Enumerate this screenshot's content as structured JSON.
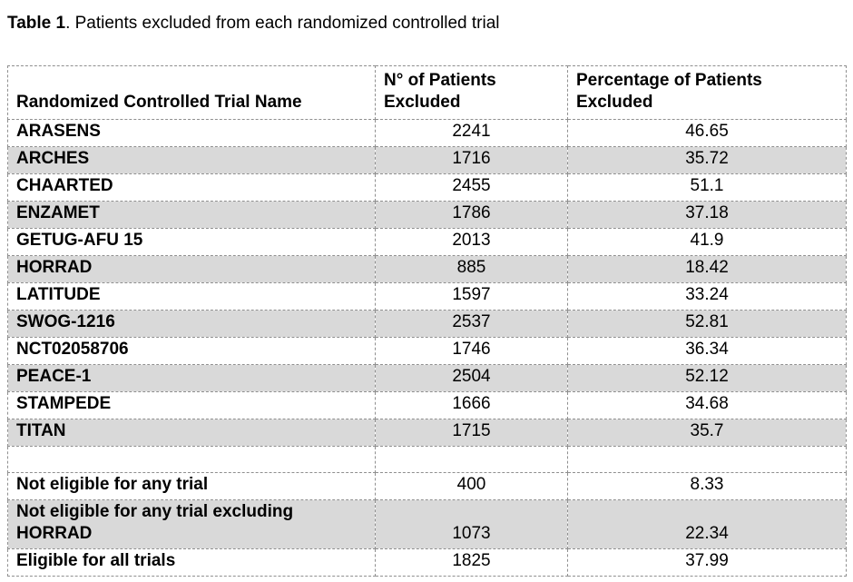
{
  "title": {
    "bold": "Table 1",
    "rest": ". Patients excluded from each randomized controlled trial"
  },
  "table": {
    "headers": {
      "trial_name": "Randomized Controlled Trial Name",
      "patients_excluded": "N° of Patients Excluded",
      "percentage_excluded": "Percentage of Patients Excluded"
    },
    "colors": {
      "row_shade": "#d9d9d9",
      "border": "#8f8f8f",
      "text": "#000000"
    },
    "rows": [
      {
        "name": "ARASENS",
        "patients_excluded": "2241",
        "percentage_excluded": "46.65",
        "shaded": false
      },
      {
        "name": "ARCHES",
        "patients_excluded": "1716",
        "percentage_excluded": "35.72",
        "shaded": true
      },
      {
        "name": "CHAARTED",
        "patients_excluded": "2455",
        "percentage_excluded": "51.1",
        "shaded": false
      },
      {
        "name": "ENZAMET",
        "patients_excluded": "1786",
        "percentage_excluded": "37.18",
        "shaded": true
      },
      {
        "name": "GETUG-AFU 15",
        "patients_excluded": "2013",
        "percentage_excluded": "41.9",
        "shaded": false
      },
      {
        "name": "HORRAD",
        "patients_excluded": "885",
        "percentage_excluded": "18.42",
        "shaded": true
      },
      {
        "name": "LATITUDE",
        "patients_excluded": "1597",
        "percentage_excluded": "33.24",
        "shaded": false
      },
      {
        "name": "SWOG-1216",
        "patients_excluded": "2537",
        "percentage_excluded": "52.81",
        "shaded": true
      },
      {
        "name": "NCT02058706",
        "patients_excluded": "1746",
        "percentage_excluded": "36.34",
        "shaded": false
      },
      {
        "name": "PEACE-1",
        "patients_excluded": "2504",
        "percentage_excluded": "52.12",
        "shaded": true
      },
      {
        "name": "STAMPEDE",
        "patients_excluded": "1666",
        "percentage_excluded": "34.68",
        "shaded": false
      },
      {
        "name": "TITAN",
        "patients_excluded": "1715",
        "percentage_excluded": "35.7",
        "shaded": true
      },
      {
        "name": "",
        "patients_excluded": "",
        "percentage_excluded": "",
        "shaded": false
      },
      {
        "name": "Not eligible for any trial",
        "patients_excluded": "400",
        "percentage_excluded": "8.33",
        "shaded": false
      },
      {
        "name": "Not eligible for any trial excluding HORRAD",
        "patients_excluded": "1073",
        "percentage_excluded": "22.34",
        "shaded": true
      },
      {
        "name": "Eligible for all trials",
        "patients_excluded": "1825",
        "percentage_excluded": "37.99",
        "shaded": false
      }
    ]
  }
}
